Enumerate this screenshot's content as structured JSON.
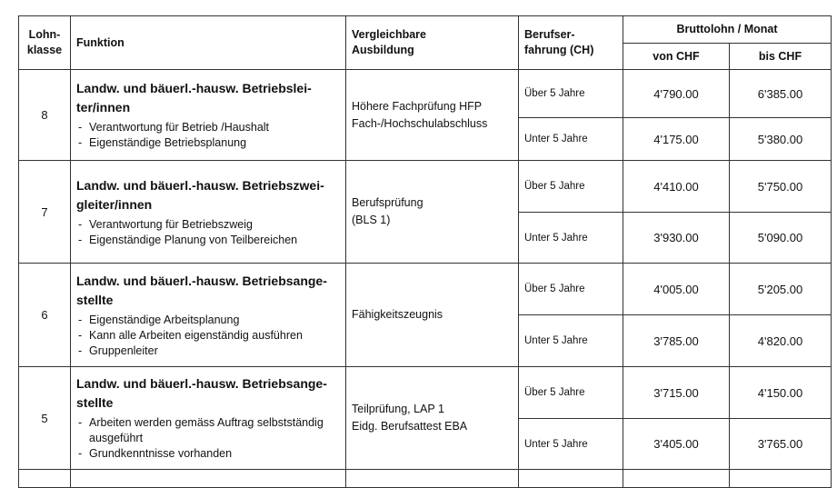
{
  "header": {
    "lohnklasse": "Lohn-\nklasse",
    "funktion": "Funktion",
    "ausbildung": "Vergleichbare\nAusbildung",
    "erfahrung": "Berufser-\nfahrung (CH)",
    "bruttolohn": "Bruttolohn / Monat",
    "von": "von CHF",
    "bis": "bis CHF"
  },
  "rows": [
    {
      "klasse": "8",
      "title": "Landw. und bäuerl.-hausw. Betriebslei-ter/innen",
      "items": [
        "Verantwortung für Betrieb /Haushalt",
        "Eigenständige Betriebsplanung"
      ],
      "ausbildung": "Höhere Fachprüfung HFP\nFach-/Hochschulabschluss",
      "levels": [
        {
          "erfahrung": "Über 5 Jahre",
          "von": "4'790.00",
          "bis": "6'385.00"
        },
        {
          "erfahrung": "Unter 5 Jahre",
          "von": "4'175.00",
          "bis": "5'380.00"
        }
      ]
    },
    {
      "klasse": "7",
      "title": "Landw. und bäuerl.-hausw. Betriebszwei-gleiter/innen",
      "items": [
        "Verantwortung für Betriebszweig",
        "Eigenständige Planung von Teilbereichen"
      ],
      "ausbildung": "Berufsprüfung\n(BLS 1)",
      "levels": [
        {
          "erfahrung": "Über 5 Jahre",
          "von": "4'410.00",
          "bis": "5'750.00"
        },
        {
          "erfahrung": "Unter 5 Jahre",
          "von": "3'930.00",
          "bis": "5'090.00"
        }
      ]
    },
    {
      "klasse": "6",
      "title": "Landw. und bäuerl.-hausw. Betriebsange-stellte",
      "items": [
        "Eigenständige Arbeitsplanung",
        "Kann alle Arbeiten eigenständig ausführen",
        "Gruppenleiter"
      ],
      "ausbildung": "Fähigkeitszeugnis",
      "levels": [
        {
          "erfahrung": "Über 5 Jahre",
          "von": "4'005.00",
          "bis": "5'205.00"
        },
        {
          "erfahrung": "Unter 5 Jahre",
          "von": "3'785.00",
          "bis": "4'820.00"
        }
      ]
    },
    {
      "klasse": "5",
      "title": "Landw. und bäuerl.-hausw. Betriebsange-stellte",
      "items": [
        "Arbeiten werden gemäss Auftrag selbstständig ausgeführt",
        "Grundkenntnisse vorhanden"
      ],
      "ausbildung": "Teilprüfung, LAP 1\nEidg. Berufsattest EBA",
      "levels": [
        {
          "erfahrung": "Über 5 Jahre",
          "von": "3'715.00",
          "bis": "4'150.00"
        },
        {
          "erfahrung": "Unter 5 Jahre",
          "von": "3'405.00",
          "bis": "3'765.00"
        }
      ]
    }
  ]
}
